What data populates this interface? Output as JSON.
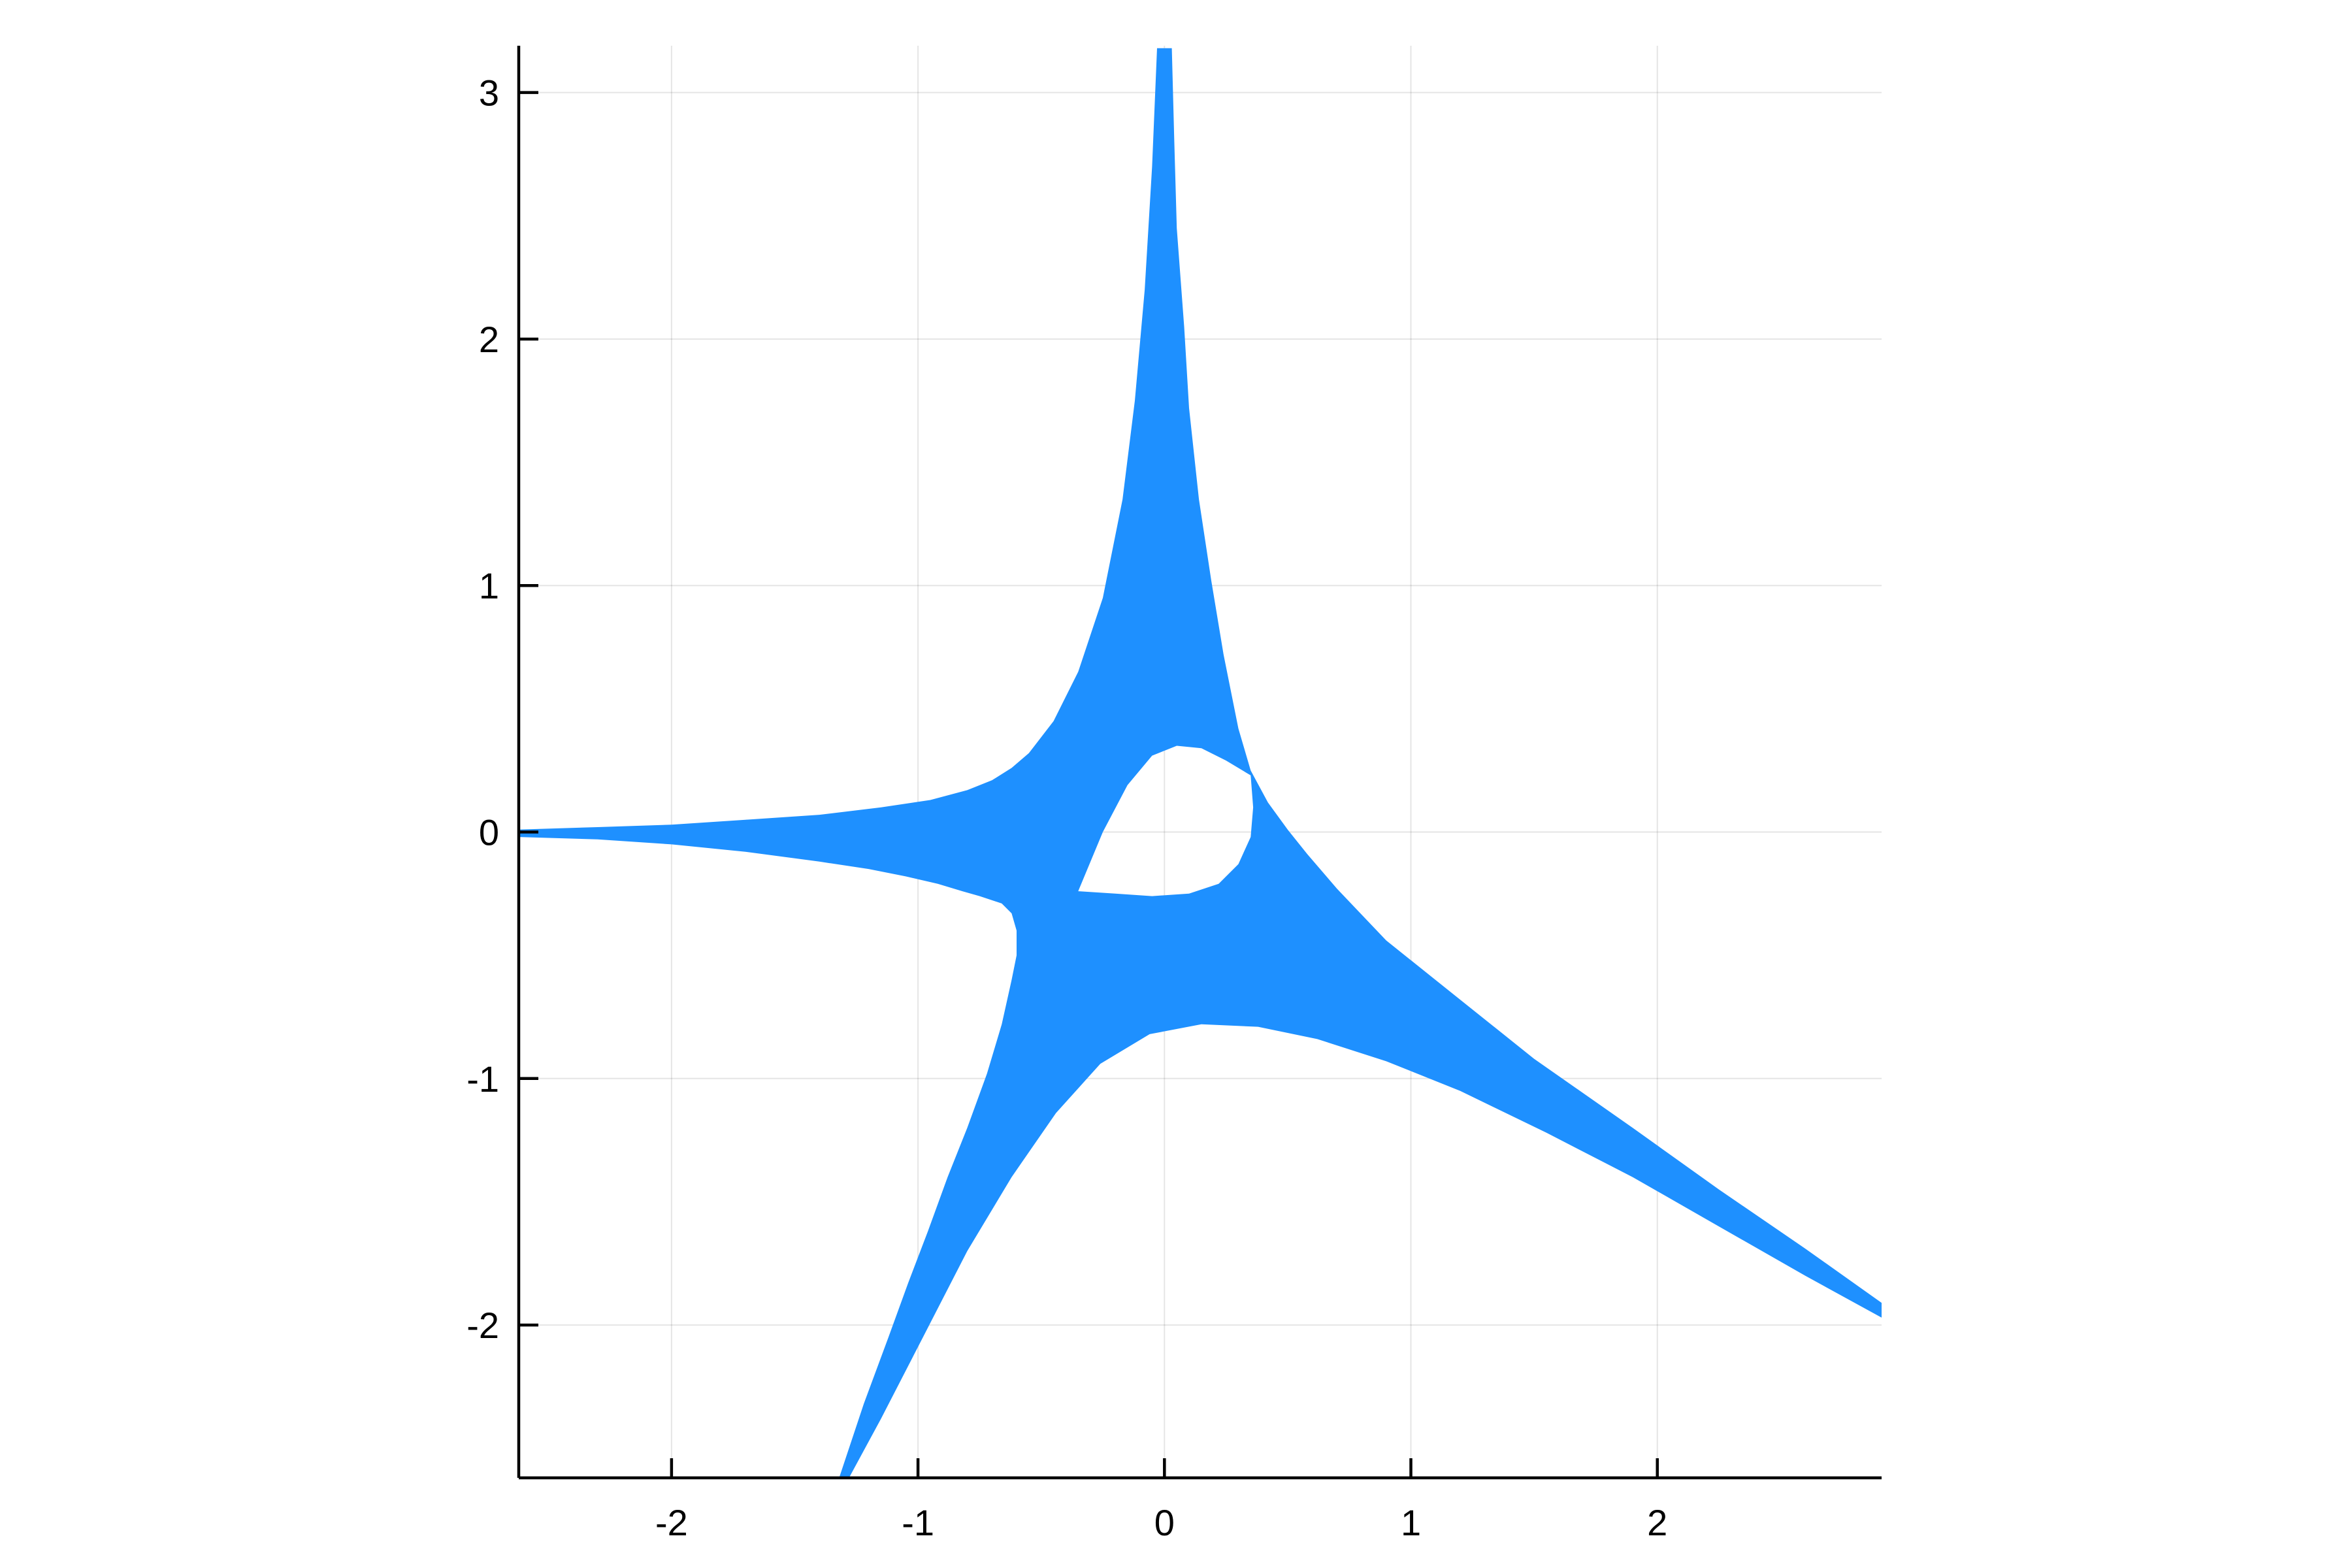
{
  "chart_data": {
    "type": "area",
    "title": "",
    "xlabel": "",
    "ylabel": "",
    "xlim": [
      -2.62,
      2.91
    ],
    "ylim": [
      -2.62,
      3.19
    ],
    "aspect": "equal",
    "grid": true,
    "legend": "none",
    "x_ticks": [
      -2,
      -1,
      0,
      1,
      2
    ],
    "x_tick_labels": [
      "-2",
      "-1",
      "0",
      "1",
      "2"
    ],
    "y_ticks": [
      -2,
      -1,
      0,
      1,
      2,
      3
    ],
    "y_tick_labels": [
      "-2",
      "-1",
      "0",
      "1",
      "2",
      "3"
    ],
    "fill_color": "#1e90ff",
    "series": [
      {
        "region": "filled band (outer boundary)",
        "x": [
          -0.03,
          -0.05,
          -0.08,
          -0.12,
          -0.17,
          -0.25,
          -0.35,
          -0.45,
          -0.55,
          -0.62,
          -0.7,
          -0.8,
          -0.95,
          -1.15,
          -1.4,
          -1.7,
          -2.0,
          -2.3,
          -2.62,
          -2.62,
          -2.3,
          -2.0,
          -1.7,
          -1.4,
          -1.2,
          -1.05,
          -0.92,
          -0.82,
          -0.75,
          -0.66,
          -0.62,
          -0.6,
          -0.6,
          -0.62,
          -0.66,
          -0.72,
          -0.8,
          -0.88,
          -0.96,
          -1.04,
          -1.12,
          -1.22,
          -1.32,
          -1.28,
          -1.15,
          -0.98,
          -0.8,
          -0.62,
          -0.44,
          -0.26,
          -0.06,
          0.15,
          0.38,
          0.62,
          0.9,
          1.2,
          1.55,
          1.9,
          2.25,
          2.6,
          2.91,
          2.91,
          2.6,
          2.25,
          1.9,
          1.5,
          1.1,
          0.9,
          0.7,
          0.58,
          0.5,
          0.42,
          0.35,
          0.3,
          0.24,
          0.19,
          0.14,
          0.1,
          0.08,
          0.05,
          0.04,
          0.03
        ],
        "y": [
          3.18,
          2.7,
          2.2,
          1.75,
          1.35,
          0.95,
          0.65,
          0.45,
          0.32,
          0.26,
          0.21,
          0.17,
          0.13,
          0.1,
          0.07,
          0.05,
          0.03,
          0.02,
          0.01,
          -0.02,
          -0.03,
          -0.05,
          -0.08,
          -0.12,
          -0.15,
          -0.18,
          -0.21,
          -0.24,
          -0.26,
          -0.29,
          -0.33,
          -0.4,
          -0.5,
          -0.6,
          -0.78,
          -0.98,
          -1.2,
          -1.4,
          -1.62,
          -1.83,
          -2.05,
          -2.32,
          -2.62,
          -2.62,
          -2.38,
          -2.05,
          -1.7,
          -1.4,
          -1.14,
          -0.94,
          -0.82,
          -0.78,
          -0.79,
          -0.84,
          -0.93,
          -1.05,
          -1.22,
          -1.4,
          -1.6,
          -1.8,
          -1.97,
          -1.91,
          -1.69,
          -1.45,
          -1.2,
          -0.92,
          -0.6,
          -0.44,
          -0.23,
          -0.09,
          0.01,
          0.12,
          0.25,
          0.42,
          0.72,
          1.02,
          1.35,
          1.72,
          2.05,
          2.45,
          2.8,
          3.18
        ]
      },
      {
        "region": "hole (unfilled interior)",
        "x": [
          -0.35,
          -0.25,
          -0.15,
          -0.05,
          0.05,
          0.15,
          0.25,
          0.35,
          0.36,
          0.35,
          0.3,
          0.22,
          0.1,
          -0.05,
          -0.2,
          -0.35
        ],
        "y": [
          -0.24,
          0.0,
          0.19,
          0.31,
          0.35,
          0.34,
          0.29,
          0.23,
          0.1,
          -0.02,
          -0.13,
          -0.21,
          -0.25,
          -0.26,
          -0.25,
          -0.24
        ]
      }
    ]
  }
}
